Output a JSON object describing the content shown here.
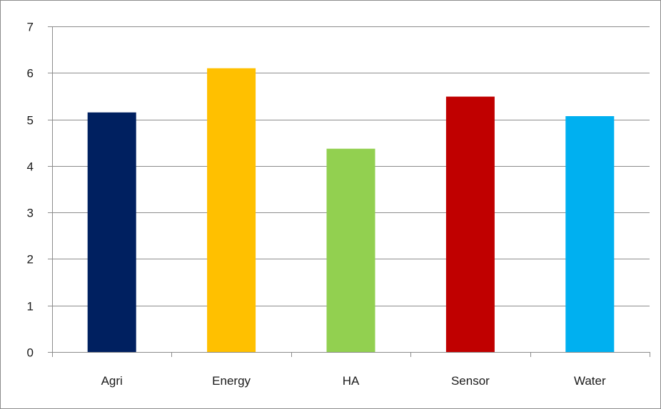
{
  "chart_data": {
    "type": "bar",
    "title": "",
    "xlabel": "",
    "ylabel": "",
    "categories": [
      "Agri",
      "Energy",
      "HA",
      "Sensor",
      "Water"
    ],
    "values": [
      5.15,
      6.1,
      4.37,
      5.49,
      5.07
    ],
    "colors": [
      "#002060",
      "#FFC000",
      "#92D050",
      "#C00000",
      "#00B0F0"
    ],
    "ylim": [
      0,
      7
    ],
    "yticks": [
      0,
      1,
      2,
      3,
      4,
      5,
      6,
      7
    ],
    "grid": true,
    "legend": "none"
  }
}
